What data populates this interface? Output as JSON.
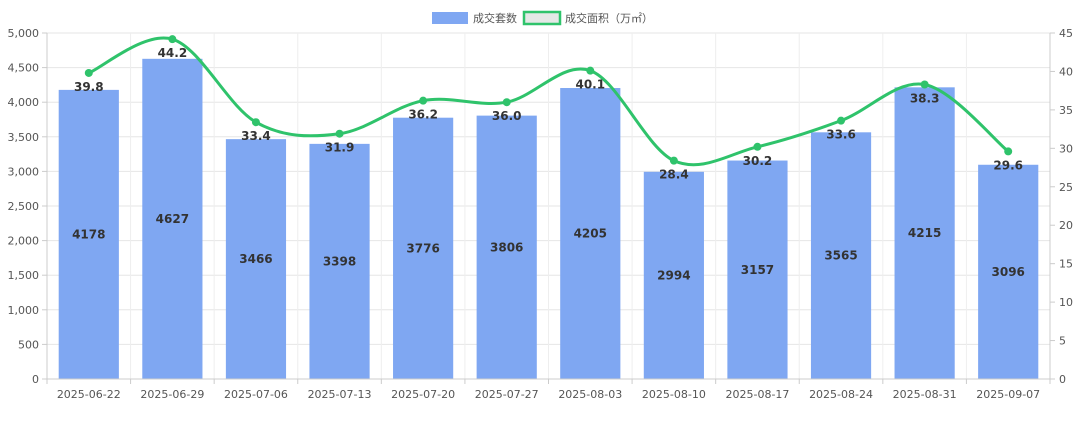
{
  "chart_data": {
    "type": "bar",
    "categories": [
      "2025-06-22",
      "2025-06-29",
      "2025-07-06",
      "2025-07-13",
      "2025-07-20",
      "2025-07-27",
      "2025-08-03",
      "2025-08-10",
      "2025-08-17",
      "2025-08-24",
      "2025-08-31",
      "2025-09-07"
    ],
    "series": [
      {
        "name": "成交套数",
        "type": "bar",
        "axis": "left",
        "color": "#7fa7f2",
        "values": [
          4178,
          4627,
          3466,
          3398,
          3776,
          3806,
          4205,
          2994,
          3157,
          3565,
          4215,
          3096
        ],
        "labels": [
          "4178",
          "4627",
          "3466",
          "3398",
          "3776",
          "3806",
          "4205",
          "2994",
          "3157",
          "3565",
          "4215",
          "3096"
        ]
      },
      {
        "name": "成交面积（万㎡）",
        "type": "line",
        "smooth": true,
        "axis": "right",
        "color": "#2fc36b",
        "values": [
          39.8,
          44.2,
          33.4,
          31.9,
          36.2,
          36.0,
          40.1,
          28.4,
          30.2,
          33.6,
          38.3,
          29.6
        ],
        "labels": [
          "39.8",
          "44.2",
          "33.4",
          "31.9",
          "36.2",
          "36.0",
          "40.1",
          "28.4",
          "30.2",
          "33.6",
          "38.3",
          "29.6"
        ]
      }
    ],
    "y_left": {
      "ylim": [
        0,
        5000
      ],
      "ticks": [
        0,
        500,
        1000,
        1500,
        2000,
        2500,
        3000,
        3500,
        4000,
        4500,
        5000
      ],
      "tick_labels": [
        "0",
        "500",
        "1,000",
        "1,500",
        "2,000",
        "2,500",
        "3,000",
        "3,500",
        "4,000",
        "4,500",
        "5,000"
      ]
    },
    "y_right": {
      "ylim": [
        0,
        45
      ],
      "ticks": [
        0,
        5,
        10,
        15,
        20,
        25,
        30,
        35,
        40,
        45
      ],
      "tick_labels": [
        "0",
        "5",
        "10",
        "15",
        "20",
        "25",
        "30",
        "35",
        "40",
        "45"
      ]
    },
    "grid": true,
    "legend_position": "top-center",
    "title": "",
    "xlabel": "",
    "ylabel": ""
  }
}
